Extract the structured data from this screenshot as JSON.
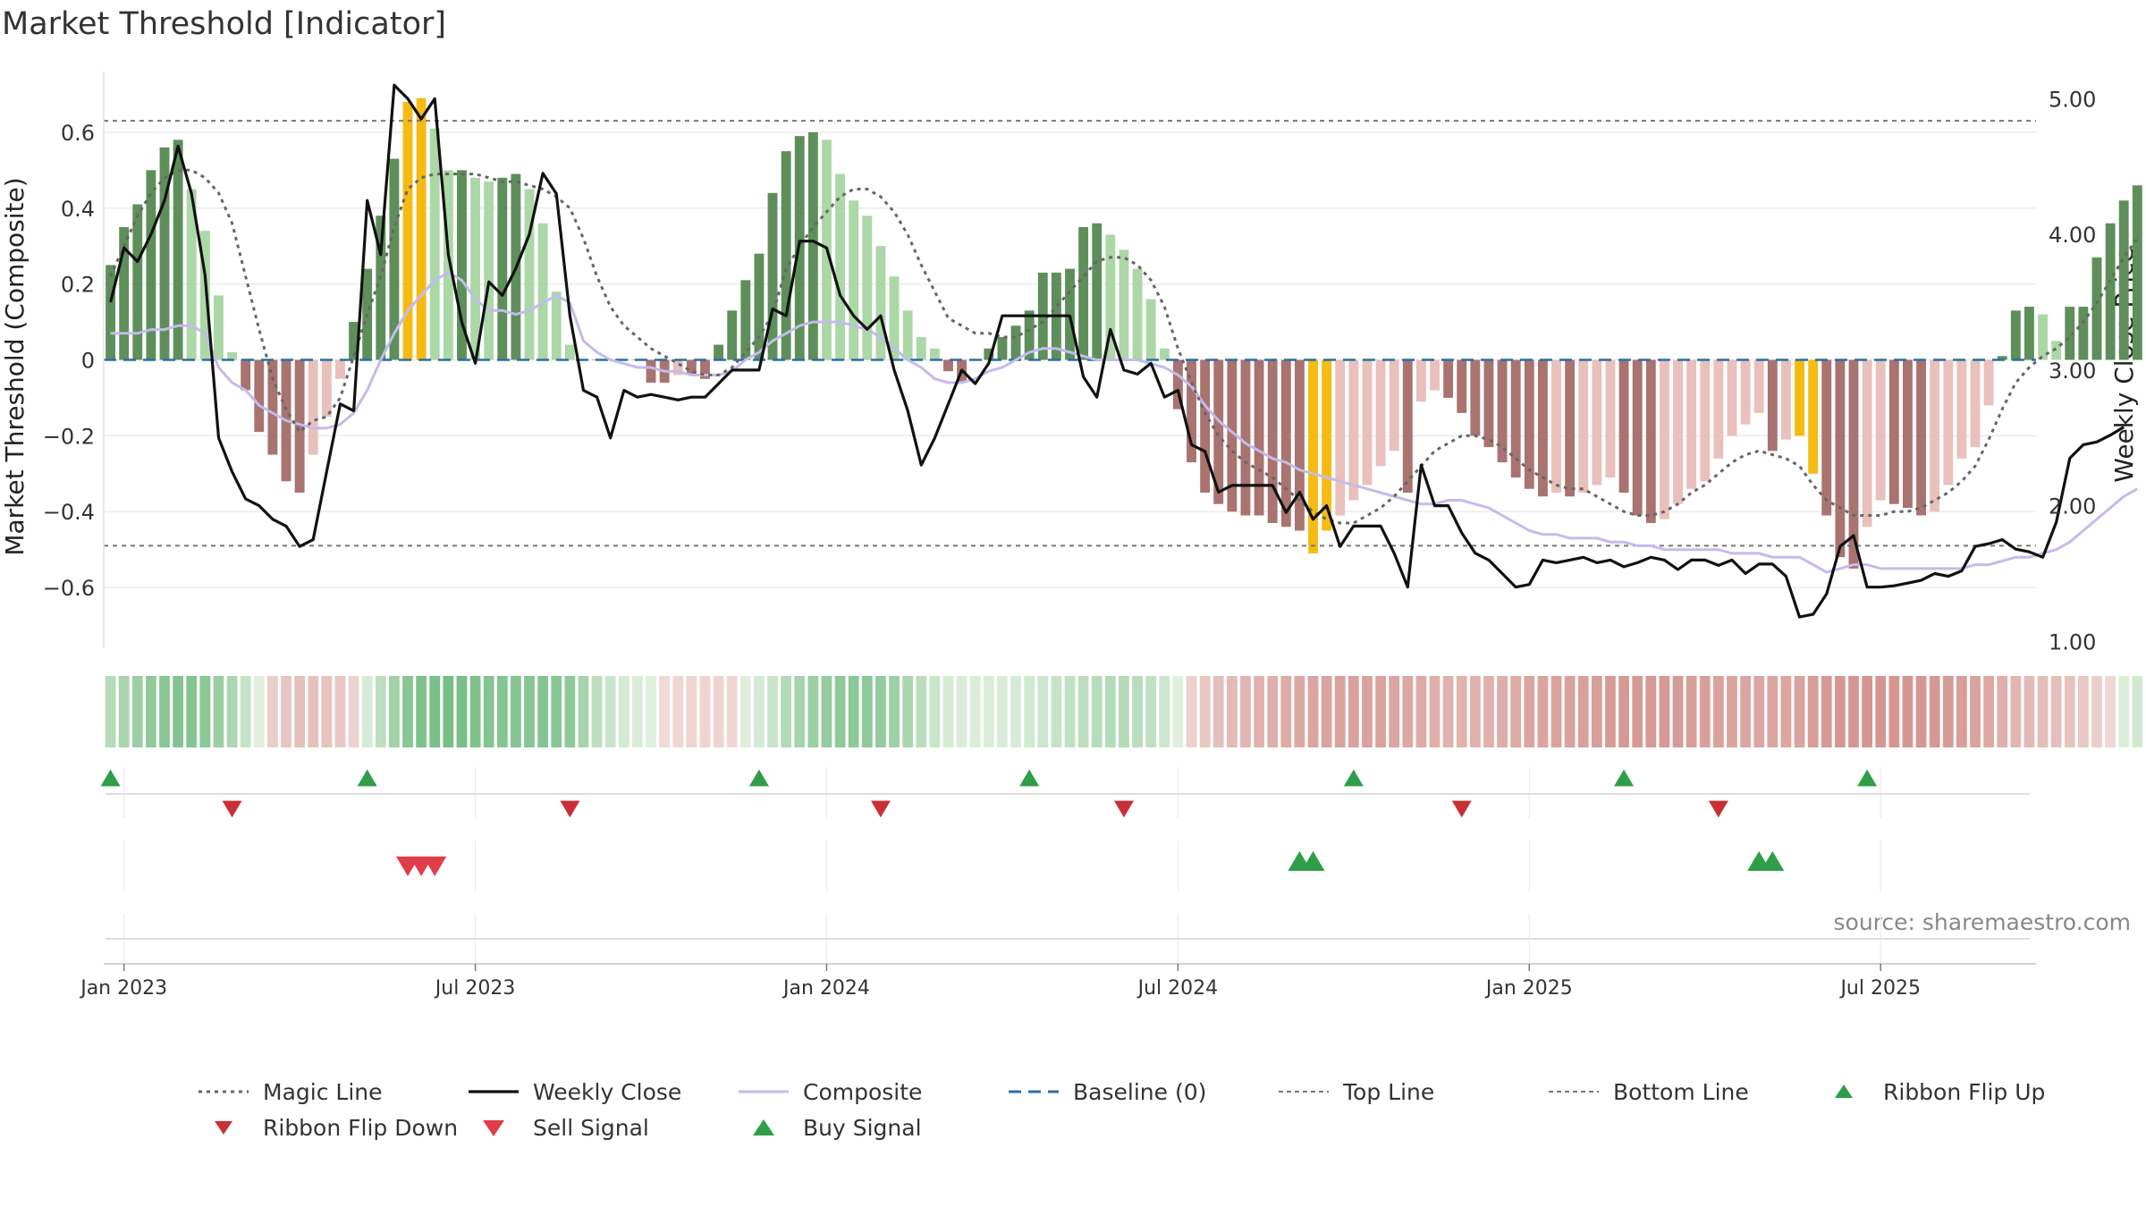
{
  "chart_data": {
    "type": "bar",
    "title": "Market Threshold [Indicator]",
    "ylabel_left": "Market Threshold (Composite)",
    "ylabel_right": "Weekly Close Price",
    "source": "source: sharemaestro.com",
    "ylim_left": [
      -0.76,
      0.76
    ],
    "ylim_right": [
      0.95,
      5.2
    ],
    "yticks_left": [
      {
        "v": 0.6,
        "label": "0.6"
      },
      {
        "v": 0.4,
        "label": "0.4"
      },
      {
        "v": 0.2,
        "label": "0.2"
      },
      {
        "v": 0,
        "label": "0"
      },
      {
        "v": -0.2,
        "label": "−0.2"
      },
      {
        "v": -0.4,
        "label": "−0.4"
      },
      {
        "v": -0.6,
        "label": "−0.6"
      }
    ],
    "yticks_right": [
      {
        "v": 5,
        "label": "5.00"
      },
      {
        "v": 4,
        "label": "4.00"
      },
      {
        "v": 3,
        "label": "3.00"
      },
      {
        "v": 2,
        "label": "2.00"
      },
      {
        "v": 1,
        "label": "1.00"
      }
    ],
    "x_ticks": [
      {
        "label": "Jan 2023",
        "week": 1
      },
      {
        "label": "Jul 2023",
        "week": 27
      },
      {
        "label": "Jan 2024",
        "week": 53
      },
      {
        "label": "Jul 2024",
        "week": 79
      },
      {
        "label": "Jan 2025",
        "week": 105
      },
      {
        "label": "Jul 2025",
        "week": 131
      }
    ],
    "x_range": [
      -0.5,
      142.5
    ],
    "top_line": 0.63,
    "bottom_line": -0.49,
    "baseline": 0,
    "composite_bars": [
      0.25,
      0.35,
      0.41,
      0.5,
      0.56,
      0.58,
      0.45,
      0.34,
      0.17,
      0.02,
      -0.08,
      -0.19,
      -0.25,
      -0.32,
      -0.35,
      -0.25,
      -0.15,
      -0.05,
      0.1,
      0.24,
      0.38,
      0.53,
      0.68,
      0.69,
      0.61,
      0.5,
      0.5,
      0.48,
      0.47,
      0.48,
      0.49,
      0.45,
      0.36,
      0.18,
      0.04,
      0,
      0,
      0,
      0,
      0,
      -0.06,
      -0.06,
      -0.04,
      -0.04,
      -0.05,
      0.04,
      0.13,
      0.21,
      0.28,
      0.44,
      0.55,
      0.59,
      0.6,
      0.58,
      0.49,
      0.42,
      0.38,
      0.3,
      0.22,
      0.13,
      0.06,
      0.03,
      -0.03,
      -0.06,
      0,
      0.03,
      0.06,
      0.09,
      0.13,
      0.23,
      0.23,
      0.24,
      0.35,
      0.36,
      0.33,
      0.29,
      0.24,
      0.16,
      0.03,
      -0.13,
      -0.27,
      -0.35,
      -0.38,
      -0.4,
      -0.41,
      -0.41,
      -0.43,
      -0.44,
      -0.45,
      -0.51,
      -0.45,
      -0.41,
      -0.37,
      -0.33,
      -0.28,
      -0.24,
      -0.35,
      -0.11,
      -0.08,
      -0.1,
      -0.14,
      -0.2,
      -0.23,
      -0.27,
      -0.31,
      -0.34,
      -0.36,
      -0.35,
      -0.36,
      -0.35,
      -0.33,
      -0.31,
      -0.35,
      -0.41,
      -0.43,
      -0.42,
      -0.38,
      -0.34,
      -0.32,
      -0.26,
      -0.2,
      -0.17,
      -0.14,
      -0.24,
      -0.21,
      -0.2,
      -0.3,
      -0.41,
      -0.52,
      -0.55,
      -0.44,
      -0.37,
      -0.38,
      -0.39,
      -0.41,
      -0.4,
      -0.33,
      -0.26,
      -0.23,
      -0.12,
      0.01,
      0.13,
      0.14,
      0.12,
      0.05,
      0.14,
      0.14,
      0.27,
      0.36,
      0.42,
      0.46,
      0.47
    ],
    "signal_bars": [
      22,
      23,
      89,
      90,
      125,
      126
    ],
    "weekly_close": [
      3.5,
      3.9,
      3.8,
      4.0,
      4.25,
      4.65,
      4.3,
      3.7,
      2.5,
      2.25,
      2.05,
      2.0,
      1.9,
      1.85,
      1.7,
      1.75,
      2.25,
      2.75,
      2.7,
      4.25,
      3.85,
      5.1,
      5.0,
      4.85,
      5.0,
      3.85,
      3.35,
      3.05,
      3.65,
      3.55,
      3.75,
      4.0,
      4.45,
      4.3,
      3.4,
      2.85,
      2.8,
      2.5,
      2.85,
      2.8,
      2.82,
      2.8,
      2.78,
      2.8,
      2.8,
      2.9,
      3.0,
      3.0,
      3.0,
      3.45,
      3.4,
      3.95,
      3.95,
      3.9,
      3.55,
      3.4,
      3.3,
      3.4,
      3.0,
      2.7,
      2.3,
      2.5,
      2.75,
      3.0,
      2.9,
      3.05,
      3.4,
      3.4,
      3.4,
      3.4,
      3.4,
      3.4,
      2.95,
      2.8,
      3.3,
      3.0,
      2.97,
      3.05,
      2.8,
      2.85,
      2.45,
      2.4,
      2.1,
      2.15,
      2.15,
      2.15,
      2.15,
      1.95,
      2.1,
      1.9,
      2.0,
      1.7,
      1.85,
      1.85,
      1.85,
      1.65,
      1.4,
      2.3,
      2.0,
      2.0,
      1.8,
      1.65,
      1.6,
      1.5,
      1.4,
      1.42,
      1.6,
      1.58,
      1.6,
      1.62,
      1.58,
      1.6,
      1.55,
      1.58,
      1.62,
      1.6,
      1.53,
      1.6,
      1.6,
      1.56,
      1.6,
      1.5,
      1.57,
      1.57,
      1.48,
      1.18,
      1.2,
      1.35,
      1.7,
      1.78,
      1.4,
      1.4,
      1.41,
      1.43,
      1.45,
      1.5,
      1.48,
      1.52,
      1.7,
      1.72,
      1.75,
      1.68,
      1.66,
      1.62,
      1.88,
      2.35,
      2.45,
      2.47,
      2.52,
      2.58
    ],
    "composite_line": [
      0.07,
      0.07,
      0.07,
      0.08,
      0.08,
      0.09,
      0.09,
      0.07,
      -0.02,
      -0.06,
      -0.08,
      -0.12,
      -0.14,
      -0.16,
      -0.17,
      -0.18,
      -0.18,
      -0.17,
      -0.14,
      -0.08,
      0.0,
      0.07,
      0.13,
      0.17,
      0.21,
      0.23,
      0.21,
      0.16,
      0.13,
      0.13,
      0.12,
      0.13,
      0.15,
      0.17,
      0.15,
      0.05,
      0.02,
      0.0,
      -0.01,
      -0.02,
      -0.02,
      -0.03,
      -0.03,
      -0.04,
      -0.04,
      -0.04,
      -0.03,
      0.0,
      0.02,
      0.05,
      0.07,
      0.09,
      0.1,
      0.1,
      0.1,
      0.09,
      0.08,
      0.06,
      0.03,
      0.0,
      -0.02,
      -0.05,
      -0.06,
      -0.06,
      -0.05,
      -0.03,
      -0.02,
      0.0,
      0.02,
      0.03,
      0.03,
      0.02,
      0.01,
      0.0,
      0.0,
      0.0,
      0.0,
      -0.01,
      -0.02,
      -0.04,
      -0.07,
      -0.12,
      -0.16,
      -0.19,
      -0.22,
      -0.24,
      -0.26,
      -0.27,
      -0.29,
      -0.3,
      -0.31,
      -0.32,
      -0.33,
      -0.34,
      -0.35,
      -0.36,
      -0.37,
      -0.38,
      -0.38,
      -0.37,
      -0.37,
      -0.38,
      -0.39,
      -0.41,
      -0.43,
      -0.45,
      -0.46,
      -0.46,
      -0.47,
      -0.47,
      -0.47,
      -0.48,
      -0.48,
      -0.49,
      -0.49,
      -0.5,
      -0.5,
      -0.5,
      -0.5,
      -0.5,
      -0.51,
      -0.51,
      -0.51,
      -0.52,
      -0.52,
      -0.52,
      -0.54,
      -0.56,
      -0.55,
      -0.54,
      -0.54,
      -0.55,
      -0.55,
      -0.55,
      -0.55,
      -0.55,
      -0.55,
      -0.55,
      -0.54,
      -0.54,
      -0.53,
      -0.52,
      -0.52,
      -0.51,
      -0.5,
      -0.48,
      -0.45,
      -0.42,
      -0.39,
      -0.36,
      -0.34
    ],
    "magic_line": [
      0.22,
      0.3,
      0.38,
      0.44,
      0.48,
      0.5,
      0.5,
      0.48,
      0.44,
      0.36,
      0.22,
      0.08,
      -0.05,
      -0.13,
      -0.19,
      -0.16,
      -0.15,
      -0.1,
      0.01,
      0.12,
      0.22,
      0.35,
      0.45,
      0.48,
      0.49,
      0.49,
      0.49,
      0.49,
      0.48,
      0.47,
      0.47,
      0.46,
      0.45,
      0.43,
      0.4,
      0.32,
      0.22,
      0.14,
      0.09,
      0.06,
      0.03,
      0.01,
      -0.01,
      -0.03,
      -0.04,
      -0.04,
      -0.02,
      0.02,
      0.06,
      0.12,
      0.24,
      0.3,
      0.35,
      0.39,
      0.43,
      0.45,
      0.45,
      0.43,
      0.39,
      0.33,
      0.25,
      0.18,
      0.11,
      0.09,
      0.07,
      0.07,
      0.06,
      0.06,
      0.08,
      0.1,
      0.14,
      0.18,
      0.22,
      0.26,
      0.27,
      0.27,
      0.25,
      0.21,
      0.14,
      0.03,
      -0.06,
      -0.14,
      -0.2,
      -0.24,
      -0.27,
      -0.29,
      -0.31,
      -0.34,
      -0.37,
      -0.4,
      -0.42,
      -0.43,
      -0.43,
      -0.41,
      -0.39,
      -0.36,
      -0.32,
      -0.28,
      -0.24,
      -0.22,
      -0.2,
      -0.2,
      -0.21,
      -0.23,
      -0.26,
      -0.29,
      -0.31,
      -0.33,
      -0.34,
      -0.34,
      -0.36,
      -0.38,
      -0.4,
      -0.41,
      -0.41,
      -0.4,
      -0.38,
      -0.35,
      -0.33,
      -0.3,
      -0.27,
      -0.25,
      -0.24,
      -0.25,
      -0.26,
      -0.28,
      -0.33,
      -0.37,
      -0.39,
      -0.41,
      -0.41,
      -0.41,
      -0.4,
      -0.4,
      -0.39,
      -0.37,
      -0.35,
      -0.32,
      -0.28,
      -0.21,
      -0.13,
      -0.06,
      -0.02,
      0.01,
      0.03,
      0.06,
      0.1,
      0.15,
      0.21,
      0.27,
      0.32
    ],
    "ribbon_flip_up_weeks": [
      0,
      19,
      48,
      68,
      92,
      112,
      130
    ],
    "ribbon_flip_down_weeks": [
      9,
      34,
      57,
      75,
      100,
      119
    ],
    "sell_signal_weeks": [
      22,
      23,
      24
    ],
    "buy_signal_weeks": [
      88,
      89,
      122,
      123
    ],
    "legend": [
      {
        "key": "magic",
        "label": "Magic Line"
      },
      {
        "key": "close",
        "label": "Weekly Close"
      },
      {
        "key": "composite",
        "label": "Composite"
      },
      {
        "key": "baseline",
        "label": "Baseline (0)"
      },
      {
        "key": "top",
        "label": "Top Line"
      },
      {
        "key": "bottom",
        "label": "Bottom Line"
      },
      {
        "key": "flipup",
        "label": "Ribbon Flip Up"
      },
      {
        "key": "flipdown",
        "label": "Ribbon Flip Down"
      },
      {
        "key": "sell",
        "label": "Sell Signal"
      },
      {
        "key": "buy",
        "label": "Buy Signal"
      }
    ],
    "colors": {
      "pos_strong": "#5e8f5b",
      "pos_weak": "#acd7a7",
      "neg_strong": "#a97370",
      "neg_weak": "#e9c0bb",
      "signal": "#f5bb12",
      "close": "#111111",
      "composite": "#c3bbec",
      "magic": "#666666",
      "baseline": "#2b6fa3",
      "threshold": "#777777",
      "flip_up": "#2e9e48",
      "flip_down": "#c93036",
      "sell": "#e03d4a",
      "buy": "#2e9e48",
      "grid": "#ececec",
      "axis_text": "#333333"
    }
  }
}
